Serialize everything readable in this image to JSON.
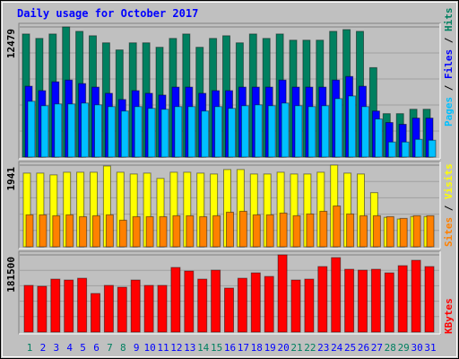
{
  "title": "Daily usage for October 2017",
  "legend_separator": "/",
  "chart_data": [
    {
      "type": "bar",
      "ylim": [
        0,
        12479
      ],
      "yticks": [
        12479
      ],
      "series": [
        {
          "name": "Hits",
          "color": "#008060",
          "values": [
            11800,
            11376,
            11800,
            12479,
            12055,
            11631,
            10952,
            10273,
            10952,
            10952,
            10527,
            11376,
            11800,
            10527,
            11376,
            11631,
            10952,
            11800,
            11376,
            11800,
            11207,
            11207,
            11207,
            12055,
            12225,
            12055,
            8575,
            4160,
            4160,
            4585,
            4585
          ]
        },
        {
          "name": "Files",
          "color": "#0000ff",
          "values": [
            6792,
            6368,
            7217,
            7386,
            7047,
            6707,
            6113,
            5519,
            6368,
            6113,
            5943,
            6707,
            6707,
            6113,
            6368,
            6368,
            6707,
            6707,
            6707,
            7386,
            6707,
            6707,
            6707,
            7386,
            7726,
            6792,
            4415,
            3311,
            3141,
            3736,
            3736
          ]
        },
        {
          "name": "Pages",
          "color": "#00c0ff",
          "values": [
            5349,
            4924,
            5094,
            5094,
            5179,
            5009,
            4839,
            4415,
            4839,
            4670,
            4585,
            4839,
            4839,
            4415,
            4839,
            4670,
            4924,
            5009,
            4924,
            5179,
            4924,
            4839,
            4924,
            5603,
            5858,
            4839,
            3651,
            1443,
            1443,
            1698,
            1613
          ]
        }
      ]
    },
    {
      "type": "bar",
      "ylim": [
        0,
        1941
      ],
      "yticks": [
        1941
      ],
      "series": [
        {
          "name": "Visits",
          "color": "#ffff00",
          "values": [
            1751,
            1751,
            1709,
            1772,
            1772,
            1772,
            1920,
            1772,
            1730,
            1751,
            1625,
            1772,
            1772,
            1751,
            1730,
            1836,
            1836,
            1730,
            1730,
            1772,
            1730,
            1730,
            1772,
            1941,
            1751,
            1730,
            1287,
            700,
            660,
            720,
            720
          ]
        },
        {
          "name": "Sites",
          "color": "#ff8000",
          "values": [
            760,
            760,
            739,
            760,
            717,
            739,
            760,
            633,
            717,
            717,
            717,
            739,
            739,
            717,
            739,
            823,
            844,
            760,
            760,
            802,
            739,
            781,
            844,
            971,
            781,
            739,
            739,
            717,
            675,
            739,
            739
          ]
        }
      ]
    },
    {
      "type": "bar",
      "ylim": [
        0,
        181500
      ],
      "yticks": [
        181500
      ],
      "categories": [
        "1",
        "2",
        "3",
        "4",
        "5",
        "6",
        "7",
        "8",
        "9",
        "10",
        "11",
        "12",
        "13",
        "14",
        "15",
        "16",
        "17",
        "18",
        "19",
        "20",
        "21",
        "22",
        "23",
        "24",
        "25",
        "26",
        "27",
        "28",
        "29",
        "30",
        "31"
      ],
      "category_colors": [
        "#008060",
        "#0000ff",
        "#0000ff",
        "#0000ff",
        "#0000ff",
        "#0000ff",
        "#008060",
        "#008060",
        "#0000ff",
        "#0000ff",
        "#0000ff",
        "#0000ff",
        "#0000ff",
        "#008060",
        "#008060",
        "#0000ff",
        "#0000ff",
        "#0000ff",
        "#0000ff",
        "#0000ff",
        "#008060",
        "#008060",
        "#0000ff",
        "#0000ff",
        "#0000ff",
        "#0000ff",
        "#0000ff",
        "#008060",
        "#008060",
        "#0000ff",
        "#0000ff"
      ],
      "series": [
        {
          "name": "KBytes",
          "color": "#ff0000",
          "values": [
            109720,
            107610,
            124490,
            122380,
            126600,
            90730,
            109720,
            105500,
            122380,
            109720,
            109720,
            151920,
            143480,
            124490,
            145590,
            103390,
            126600,
            139260,
            130820,
            181500,
            122380,
            124490,
            154030,
            175130,
            147700,
            145590,
            147700,
            139260,
            156140,
            168800,
            154030
          ]
        }
      ]
    }
  ]
}
